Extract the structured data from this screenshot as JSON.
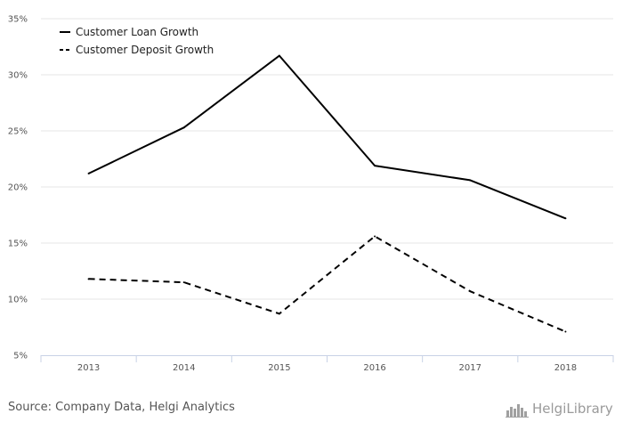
{
  "chart_data": {
    "type": "line",
    "categories": [
      "2013",
      "2014",
      "2015",
      "2016",
      "2017",
      "2018"
    ],
    "series": [
      {
        "name": "Customer Loan Growth",
        "style": "solid",
        "values": [
          21.2,
          25.3,
          31.7,
          21.9,
          20.6,
          17.2
        ]
      },
      {
        "name": "Customer Deposit Growth",
        "style": "dashed",
        "values": [
          11.8,
          11.5,
          8.7,
          15.6,
          10.7,
          7.1
        ]
      }
    ],
    "y_ticks": [
      "5%",
      "10%",
      "15%",
      "20%",
      "25%",
      "30%",
      "35%"
    ],
    "ylim": [
      5,
      35
    ],
    "y_unit": "%",
    "grid": true,
    "legend_position": "top-left",
    "line_color": "#000000"
  },
  "footer": {
    "source": "Source: Company Data, Helgi Analytics",
    "brand": "HelgiLibrary"
  }
}
